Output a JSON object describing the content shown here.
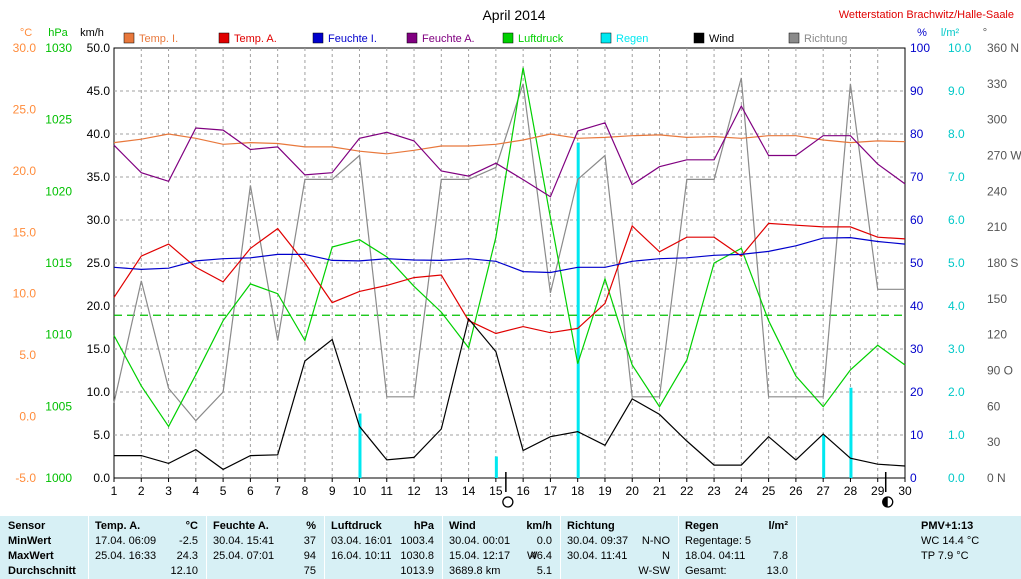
{
  "chart_data": {
    "type": "line",
    "title": "April 2014",
    "station": "Wetterstation Brachwitz/Halle-Saale",
    "x": [
      1,
      2,
      3,
      4,
      5,
      6,
      7,
      8,
      9,
      10,
      11,
      12,
      13,
      14,
      15,
      16,
      17,
      18,
      19,
      20,
      21,
      22,
      23,
      24,
      25,
      26,
      27,
      28,
      29,
      30
    ],
    "xlim": [
      1,
      30
    ],
    "axes": {
      "temp": {
        "unit": "°C",
        "ticks": [
          "30.0",
          "25.0",
          "20.0",
          "15.0",
          "10.0",
          "5.0",
          "0.0",
          "-5.0"
        ],
        "range": [
          -5,
          30
        ],
        "color": "#ff8c3c"
      },
      "pressure": {
        "unit": "hPa",
        "ticks": [
          "1030",
          "1025",
          "1020",
          "1015",
          "1010",
          "1005",
          "1000"
        ],
        "range": [
          1000,
          1035
        ],
        "color": "#00c000"
      },
      "wind": {
        "unit": "km/h",
        "ticks": [
          "50.0",
          "45.0",
          "40.0",
          "35.0",
          "30.0",
          "25.0",
          "20.0",
          "15.0",
          "10.0",
          "5.0",
          "0.0"
        ],
        "range": [
          0,
          50
        ],
        "color": "#000000"
      },
      "humidity": {
        "unit": "%",
        "ticks": [
          "100",
          "90",
          "80",
          "70",
          "60",
          "50",
          "40",
          "30",
          "20",
          "10",
          "0"
        ],
        "range": [
          0,
          100
        ],
        "color": "#0000cc"
      },
      "rain": {
        "unit": "l/m²",
        "ticks": [
          "10.0",
          "9.0",
          "8.0",
          "7.0",
          "6.0",
          "5.0",
          "4.0",
          "3.0",
          "2.0",
          "1.0",
          "0.0"
        ],
        "range": [
          0,
          10
        ],
        "color": "#00c8c8"
      },
      "direction": {
        "unit": "°",
        "ticks": [
          "360 N",
          "330",
          "300",
          "270 W",
          "240",
          "210",
          "180 S",
          "150",
          "120",
          "90 O",
          "60",
          "30",
          "0 N"
        ],
        "range": [
          0,
          360
        ],
        "color": "#555555"
      }
    },
    "series": [
      {
        "name": "Temp. I.",
        "axis": "wind",
        "color": "#e8783c",
        "values": [
          39.0,
          39.4,
          40.0,
          39.5,
          38.8,
          39.0,
          38.9,
          38.5,
          38.5,
          38.0,
          37.7,
          38.1,
          38.6,
          38.6,
          38.8,
          39.3,
          40.0,
          39.5,
          39.6,
          39.8,
          39.9,
          39.6,
          39.7,
          39.5,
          39.8,
          39.8,
          39.3,
          39.0,
          39.2,
          39.1
        ]
      },
      {
        "name": "Temp. A.",
        "axis": "wind",
        "color": "#e00000",
        "values": [
          21.0,
          25.8,
          27.2,
          24.5,
          22.8,
          26.7,
          29.0,
          25.0,
          20.4,
          21.7,
          22.4,
          23.3,
          23.6,
          18.3,
          16.8,
          17.6,
          16.9,
          17.4,
          20.3,
          29.3,
          26.3,
          28.0,
          28.0,
          25.8,
          29.6,
          29.4,
          29.2,
          29.2,
          28.0,
          27.8
        ]
      },
      {
        "name": "Feuchte I.",
        "axis": "humidity",
        "color": "#0000cc",
        "values": [
          49.0,
          48.5,
          48.8,
          50.5,
          51.0,
          51.2,
          52.0,
          52.0,
          50.6,
          50.5,
          51.0,
          50.7,
          50.6,
          51.0,
          50.4,
          48.0,
          47.8,
          49.0,
          49.0,
          50.4,
          51.0,
          51.2,
          51.8,
          52.0,
          52.7,
          54.0,
          55.8,
          55.9,
          55.0,
          54.4
        ]
      },
      {
        "name": "Feuchte A.",
        "axis": "humidity",
        "color": "#800080",
        "values": [
          77.4,
          71.0,
          69.0,
          81.4,
          80.9,
          76.4,
          77.0,
          70.5,
          71.0,
          79.0,
          80.4,
          78.4,
          71.4,
          70.2,
          73.2,
          69.4,
          65.4,
          80.7,
          82.6,
          68.2,
          72.4,
          74.0,
          74.0,
          86.5,
          75.0,
          75.0,
          79.6,
          79.6,
          73.0,
          68.4
        ]
      },
      {
        "name": "Luftdruck",
        "axis": "pressure",
        "color": "#00d000",
        "values": [
          1011.6,
          1007.5,
          1004.2,
          1008.4,
          1012.8,
          1015.8,
          1015.0,
          1011.2,
          1018.8,
          1019.4,
          1018.0,
          1015.6,
          1013.5,
          1010.6,
          1019.6,
          1033.4,
          1021.2,
          1009.3,
          1016.2,
          1009.2,
          1005.8,
          1009.6,
          1017.5,
          1018.7,
          1012.8,
          1008.3,
          1005.8,
          1008.8,
          1010.8,
          1009.2
        ]
      },
      {
        "name": "Regen",
        "axis": "rain",
        "color": "#00e8f0",
        "type": "bar",
        "values": [
          0,
          0,
          0,
          0,
          0,
          0,
          0,
          0,
          0,
          1.5,
          0,
          0,
          0,
          0,
          0.5,
          0,
          0,
          7.8,
          0,
          0,
          0,
          0,
          0,
          0,
          0,
          0,
          1.0,
          2.1,
          0,
          0
        ]
      },
      {
        "name": "Wind",
        "axis": "wind",
        "color": "#000000",
        "values": [
          2.6,
          2.6,
          1.7,
          3.3,
          1.0,
          2.6,
          2.7,
          13.6,
          16.1,
          6.0,
          2.1,
          2.4,
          5.7,
          18.5,
          14.7,
          3.2,
          4.8,
          5.4,
          3.8,
          9.2,
          7.4,
          4.3,
          1.5,
          1.5,
          4.8,
          2.1,
          5.1,
          2.3,
          1.6,
          1.4
        ]
      },
      {
        "name": "Richtung",
        "axis": "direction",
        "color": "#8a8a8a",
        "values": [
          63,
          165,
          75,
          48,
          72,
          245,
          115,
          250,
          250,
          270,
          68,
          68,
          250,
          250,
          260,
          330,
          155,
          250,
          270,
          68,
          68,
          250,
          250,
          335,
          68,
          68,
          68,
          330,
          158,
          158
        ]
      }
    ],
    "reference_line": {
      "axis": "pressure",
      "value": 1013.25,
      "style": "dashed",
      "color": "#00c000"
    },
    "x_markers": [
      {
        "x": 15,
        "symbol": "full-moon-icon"
      },
      {
        "x": 29,
        "symbol": "new-moon-icon"
      }
    ],
    "grid": true,
    "legend": "top"
  },
  "stats": {
    "temp": {
      "title": "Temp. A.",
      "unit": "°C",
      "min": {
        "time": "17.04.  06:09",
        "value": "-2.5"
      },
      "max": {
        "time": "25.04.  16:33",
        "value": "24.3"
      },
      "avg": "12.10"
    },
    "humidity": {
      "title": "Feuchte A.",
      "unit": "%",
      "min": {
        "time": "30.04.  15:41",
        "value": "37"
      },
      "max": {
        "time": "25.04.  07:01",
        "value": "94"
      },
      "avg": "75"
    },
    "pressure": {
      "title": "Luftdruck",
      "unit": "hPa",
      "min": {
        "time": "03.04.  16:01",
        "value": "1003.4"
      },
      "max": {
        "time": "16.04.  10:11",
        "value": "1030.8"
      },
      "avg": "1013.9"
    },
    "wind": {
      "title": "Wind",
      "unit": "km/h",
      "min": {
        "time": "30.04.  00:01",
        "value": "0.0"
      },
      "max": {
        "time": "15.04.  12:17",
        "dir": "W",
        "value": "46.4"
      },
      "avg": {
        "distance": "3689.8 km",
        "value": "5.1"
      }
    },
    "direction": {
      "title": "Richtung",
      "min": {
        "time": "30.04.  09:37",
        "value": "N-NO"
      },
      "max": {
        "time": "30.04.  11:41",
        "value": "N"
      },
      "avg": "W-SW"
    },
    "rain": {
      "title": "Regen",
      "unit": "l/m²",
      "days_label": "Regentage: 5",
      "max": {
        "time": "18.04.  04:11",
        "value": "7.8"
      },
      "total_label": "Gesamt:",
      "total": "13.0"
    },
    "pmv": {
      "title": "PMV+1:13",
      "wc": "WC 14.4 °C",
      "tp": "TP 7.9 °C"
    },
    "row_labels": {
      "sensor": "Sensor",
      "min": "MinWert",
      "max": "MaxWert",
      "avg": "Durchschnitt"
    }
  }
}
